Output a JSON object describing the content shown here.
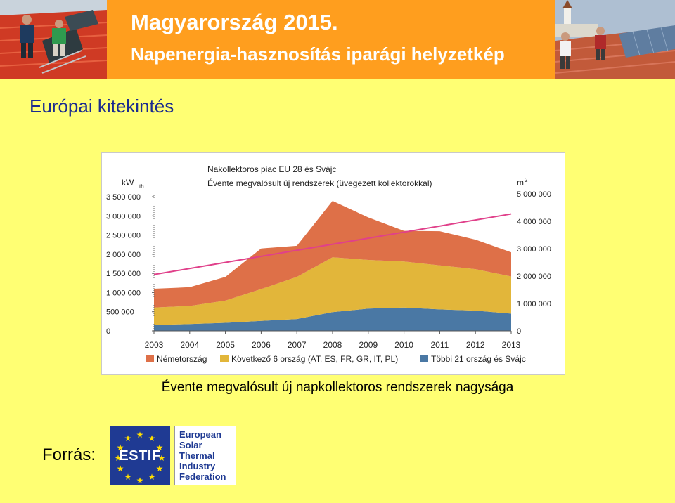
{
  "header": {
    "title_line1": "Magyarország 2015.",
    "title_line2": "Napenergia-hasznosítás iparági helyzetkép"
  },
  "section_title": "Európai kitekintés",
  "caption": "Évente megvalósult új napkollektoros rendszerek nagysága",
  "source": {
    "label": "Forrás:",
    "logo1_text": "ESTIF",
    "logo2_lines": [
      "European",
      "Solar",
      "Thermal",
      "Industry",
      "Federation"
    ]
  },
  "chart_data": {
    "type": "area",
    "title": "Nakollektoros piac EU 28 és Svájc",
    "subtitle": "Évente megvalósult új rendszerek (üvegezett kollektorokkal)",
    "y_left_unit": "kW",
    "y_left_unit_sub": "th",
    "y_right_unit": "m",
    "y_right_unit_sup": "2",
    "categories": [
      "2003",
      "2004",
      "2005",
      "2006",
      "2007",
      "2008",
      "2009",
      "2010",
      "2011",
      "2012",
      "2013"
    ],
    "left_ticks": [
      "0",
      "500 000",
      "1 000 000",
      "1 500 000",
      "2 000 000",
      "2 500 000",
      "3 000 000",
      "3 500 000"
    ],
    "left_tick_values": [
      0,
      500000,
      1000000,
      1500000,
      2000000,
      2500000,
      3000000,
      3500000
    ],
    "right_ticks": [
      "0",
      "1 000 000",
      "2 000 000",
      "3 000 000",
      "4 000 000",
      "5 000 000"
    ],
    "right_tick_values": [
      0,
      1000000,
      2000000,
      3000000,
      4000000,
      5000000
    ],
    "ylim": [
      0,
      3500000
    ],
    "y2lim": [
      0,
      5000000
    ],
    "stacked": true,
    "series": [
      {
        "name": "Többi 21 ország és Svájc",
        "color": "#4a78a4",
        "values": [
          150000,
          180000,
          210000,
          260000,
          310000,
          490000,
          580000,
          610000,
          560000,
          530000,
          450000
        ]
      },
      {
        "name": "Következő 6 ország (AT, ES, FR, GR, IT, PL)",
        "color": "#e2b63a",
        "values": [
          460000,
          470000,
          580000,
          830000,
          1100000,
          1430000,
          1270000,
          1200000,
          1150000,
          1080000,
          970000
        ]
      },
      {
        "name": "Németország",
        "color": "#de7048",
        "values": [
          490000,
          490000,
          620000,
          1060000,
          810000,
          1470000,
          1110000,
          800000,
          890000,
          770000,
          630000
        ]
      }
    ],
    "trend": {
      "color": "#e0408a",
      "from": 1470000,
      "to": 3050000
    },
    "grid": false,
    "legend_position": "bottom"
  }
}
